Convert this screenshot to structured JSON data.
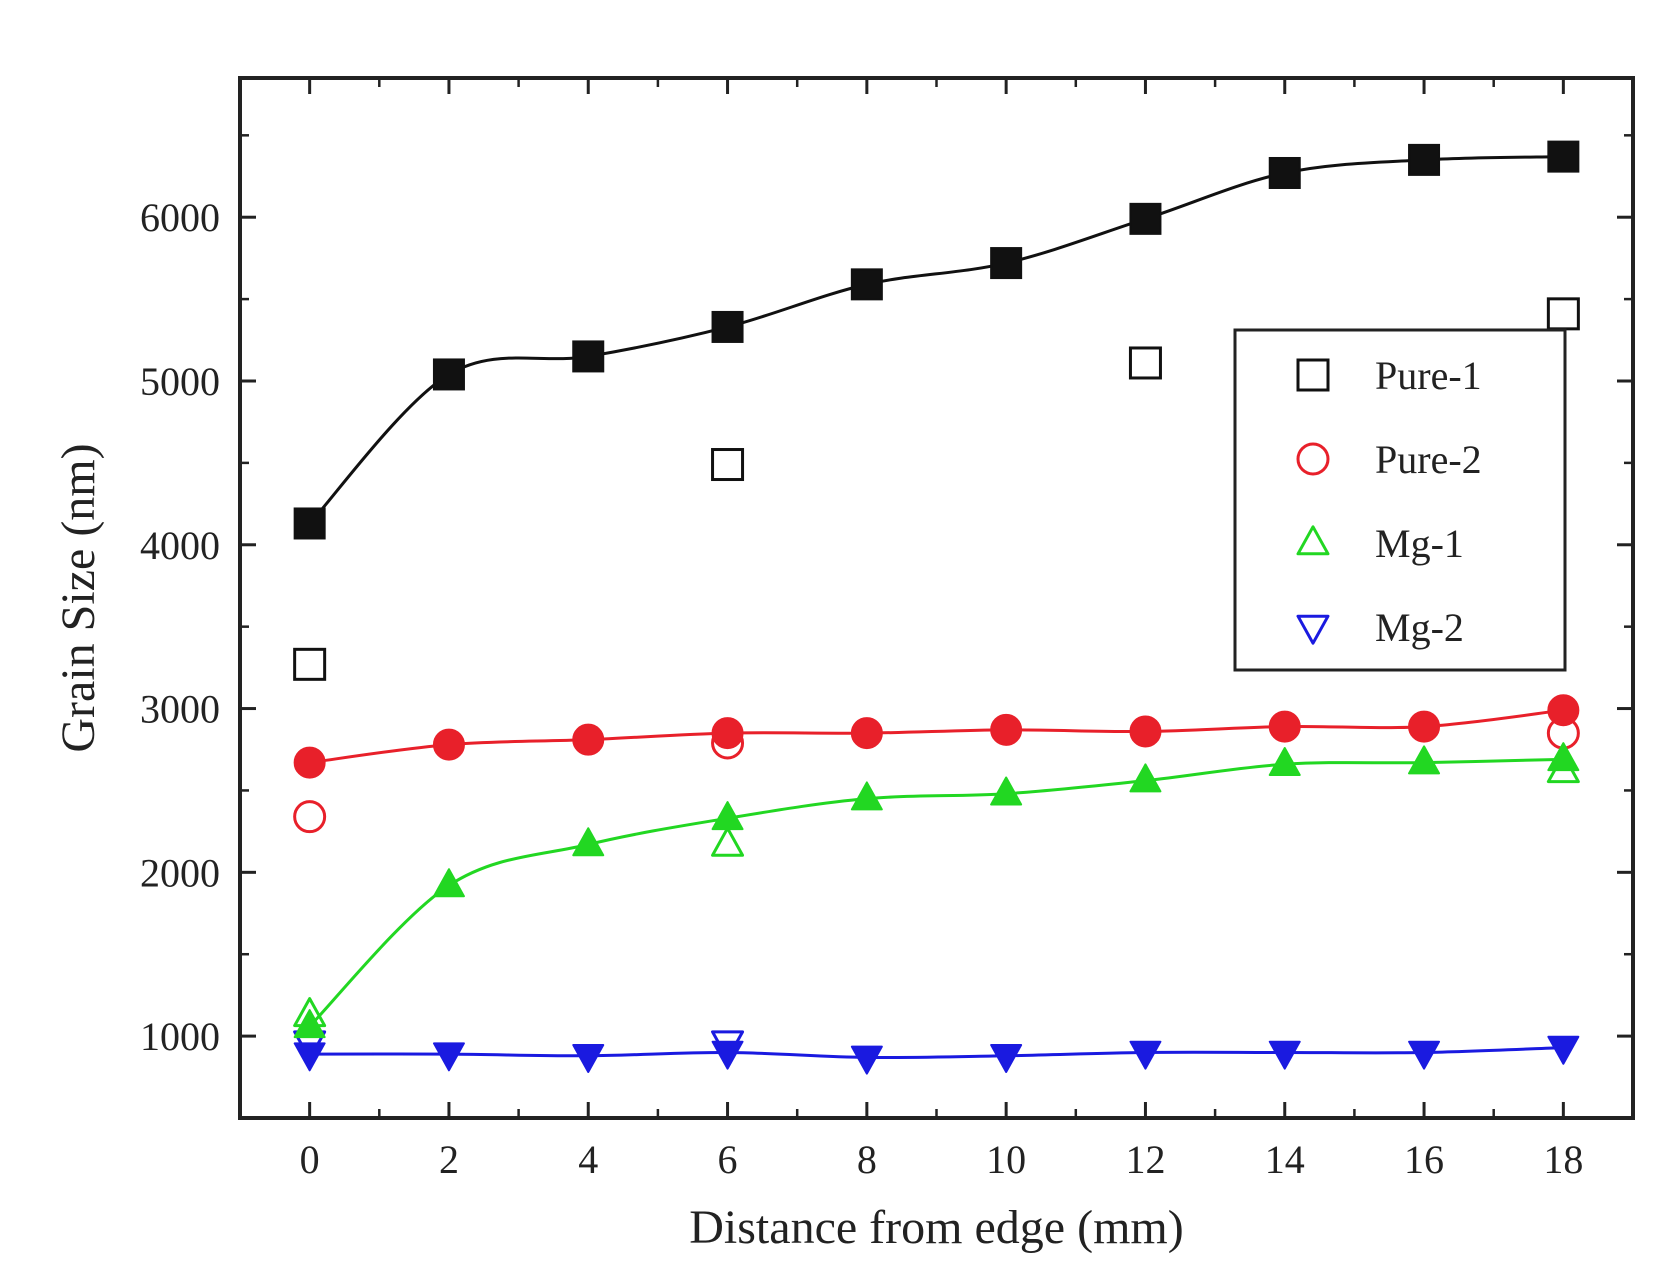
{
  "chart_data": {
    "type": "scatter",
    "title": "",
    "xlabel": "Distance from edge (mm)",
    "ylabel": "Grain Size (nm)",
    "xlim": [
      -1,
      19
    ],
    "ylim": [
      500,
      6850
    ],
    "xticks": [
      0,
      2,
      4,
      6,
      8,
      10,
      12,
      14,
      16,
      18
    ],
    "yticks": [
      1000,
      2000,
      3000,
      4000,
      5000,
      6000
    ],
    "xtick_labels": [
      "0",
      "2",
      "4",
      "6",
      "8",
      "10",
      "12",
      "14",
      "16",
      "18"
    ],
    "ytick_labels": [
      "1000",
      "2000",
      "3000",
      "4000",
      "5000",
      "6000"
    ],
    "legend_position": "right-center",
    "legend": [
      "Pure-1",
      "Pure-2",
      "Mg-1",
      "Mg-2"
    ],
    "series": [
      {
        "name": "Pure-1 (open)",
        "legend_index": 0,
        "marker": "square",
        "filled": false,
        "color": "#111111",
        "x": [
          0,
          6,
          12,
          18
        ],
        "y": [
          3270,
          4490,
          5110,
          5410
        ]
      },
      {
        "name": "Pure-2 (open)",
        "legend_index": 1,
        "marker": "circle",
        "filled": false,
        "color": "#e8202a",
        "x": [
          0,
          6,
          18
        ],
        "y": [
          2340,
          2790,
          2850
        ]
      },
      {
        "name": "Mg-1 (open)",
        "legend_index": 2,
        "marker": "triangle-up",
        "filled": false,
        "color": "#22d722",
        "x": [
          0,
          6,
          18
        ],
        "y": [
          1130,
          2170,
          2620
        ]
      },
      {
        "name": "Mg-2 (open)",
        "legend_index": 3,
        "marker": "triangle-down",
        "filled": false,
        "color": "#1a1ae0",
        "x": [
          0,
          6
        ],
        "y": [
          960,
          960
        ]
      },
      {
        "name": "Pure-1 (filled)",
        "marker": "square",
        "filled": true,
        "fit_line": true,
        "color": "#111111",
        "x": [
          0,
          2,
          4,
          6,
          8,
          10,
          12,
          14,
          16,
          18
        ],
        "y": [
          4130,
          5040,
          5150,
          5330,
          5590,
          5720,
          5990,
          6270,
          6350,
          6370
        ]
      },
      {
        "name": "Pure-2 (filled)",
        "marker": "circle",
        "filled": true,
        "fit_line": true,
        "color": "#e8202a",
        "x": [
          0,
          2,
          4,
          6,
          8,
          10,
          12,
          14,
          16,
          18
        ],
        "y": [
          2670,
          2780,
          2810,
          2850,
          2850,
          2870,
          2860,
          2890,
          2890,
          2990
        ]
      },
      {
        "name": "Mg-1 (filled)",
        "marker": "triangle-up",
        "filled": true,
        "fit_line": true,
        "color": "#22d722",
        "x": [
          0,
          2,
          4,
          6,
          8,
          10,
          12,
          14,
          16,
          18
        ],
        "y": [
          1060,
          1920,
          2170,
          2330,
          2450,
          2480,
          2560,
          2660,
          2670,
          2690
        ]
      },
      {
        "name": "Mg-2 (filled)",
        "marker": "triangle-down",
        "filled": true,
        "fit_line": true,
        "color": "#1a1ae0",
        "x": [
          0,
          2,
          4,
          6,
          8,
          10,
          12,
          14,
          16,
          18
        ],
        "y": [
          890,
          890,
          880,
          900,
          870,
          880,
          900,
          900,
          900,
          930
        ]
      }
    ]
  }
}
